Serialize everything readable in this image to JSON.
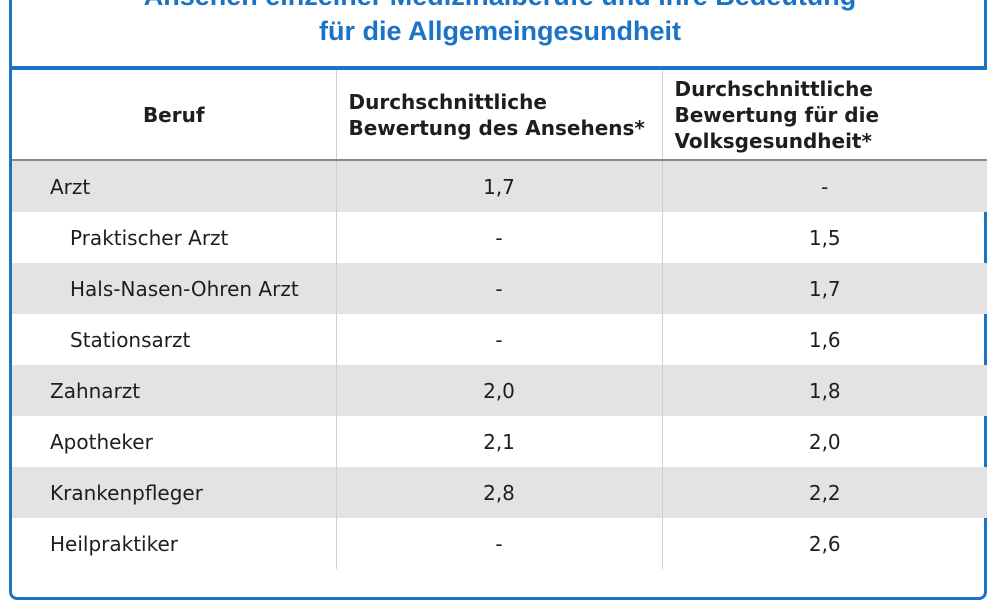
{
  "title": {
    "line1": "Ansehen einzelner Medizinalberufe und ihre Bedeutung",
    "line2": "für die Allgemeingesundheit"
  },
  "table": {
    "headers": [
      "Beruf",
      "Durchschnittliche Bewertung des Ansehens*",
      "Durchschnittliche Bewertung für die Volksgesundheit*"
    ],
    "rows": [
      {
        "beruf": "Arzt",
        "ansehen": "1,7",
        "volksgesundheit": "-"
      },
      {
        "beruf": "Praktischer Arzt",
        "ansehen": "-",
        "volksgesundheit": "1,5"
      },
      {
        "beruf": "Hals-Nasen-Ohren Arzt",
        "ansehen": "-",
        "volksgesundheit": "1,7"
      },
      {
        "beruf": "Stationsarzt",
        "ansehen": "-",
        "volksgesundheit": "1,6"
      },
      {
        "beruf": "Zahnarzt",
        "ansehen": "2,0",
        "volksgesundheit": "1,8"
      },
      {
        "beruf": "Apotheker",
        "ansehen": "2,1",
        "volksgesundheit": "2,0"
      },
      {
        "beruf": "Krankenpfleger",
        "ansehen": "2,8",
        "volksgesundheit": "2,2"
      },
      {
        "beruf": "Heilpraktiker",
        "ansehen": "-",
        "volksgesundheit": "2,6"
      }
    ]
  },
  "colors": {
    "accent": "#1a73c5",
    "row_shade": "#e3e3e3"
  }
}
